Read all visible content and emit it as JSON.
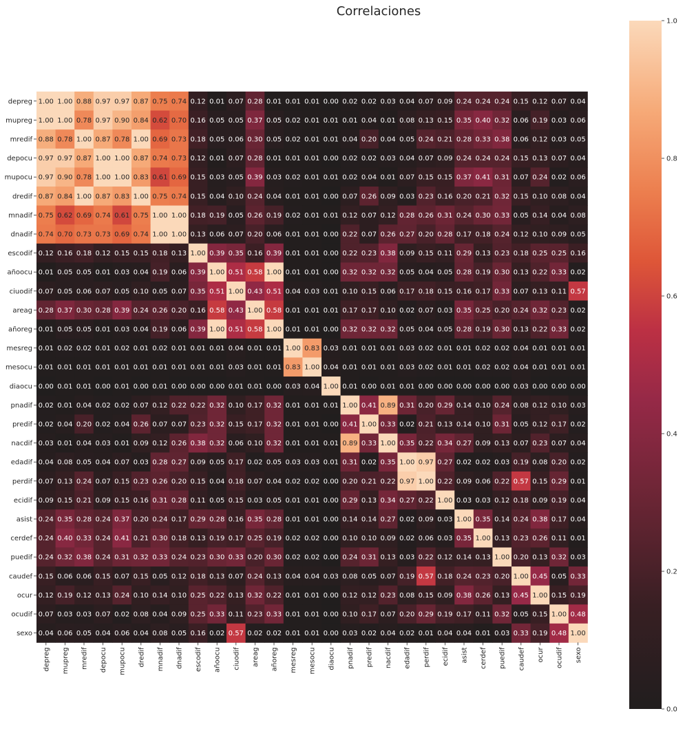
{
  "chart_data": {
    "type": "heatmap",
    "title": "Correlaciones",
    "variables": [
      "depreg",
      "mupreg",
      "mredif",
      "depocu",
      "mupocu",
      "dredif",
      "mnadif",
      "dnadif",
      "escodif",
      "añoocu",
      "ciuodif",
      "areag",
      "añoreg",
      "mesreg",
      "mesocu",
      "diaocu",
      "pnadif",
      "predif",
      "nacdif",
      "edadif",
      "perdif",
      "ecidif",
      "asist",
      "cerdef",
      "puedif",
      "caudef",
      "ocur",
      "ocudif",
      "sexo"
    ],
    "matrix": [
      [
        1.0,
        1.0,
        0.88,
        0.97,
        0.97,
        0.87,
        0.75,
        0.74,
        0.12,
        0.01,
        0.07,
        0.28,
        0.01,
        0.01,
        0.01,
        0.0,
        0.02,
        0.02,
        0.03,
        0.04,
        0.07,
        0.09,
        0.24,
        0.24,
        0.24,
        0.15,
        0.12,
        0.07,
        0.04
      ],
      [
        1.0,
        1.0,
        0.78,
        0.97,
        0.9,
        0.84,
        0.62,
        0.7,
        0.16,
        0.05,
        0.05,
        0.37,
        0.05,
        0.02,
        0.01,
        0.01,
        0.01,
        0.04,
        0.01,
        0.08,
        0.13,
        0.15,
        0.35,
        0.4,
        0.32,
        0.06,
        0.19,
        0.03,
        0.06
      ],
      [
        0.88,
        0.78,
        1.0,
        0.87,
        0.78,
        1.0,
        0.69,
        0.73,
        0.18,
        0.05,
        0.06,
        0.3,
        0.05,
        0.02,
        0.01,
        0.01,
        0.04,
        0.2,
        0.04,
        0.05,
        0.24,
        0.21,
        0.28,
        0.33,
        0.38,
        0.06,
        0.12,
        0.03,
        0.05
      ],
      [
        0.97,
        0.97,
        0.87,
        1.0,
        1.0,
        0.87,
        0.74,
        0.73,
        0.12,
        0.01,
        0.07,
        0.28,
        0.01,
        0.01,
        0.01,
        0.0,
        0.02,
        0.02,
        0.03,
        0.04,
        0.07,
        0.09,
        0.24,
        0.24,
        0.24,
        0.15,
        0.13,
        0.07,
        0.04
      ],
      [
        0.97,
        0.9,
        0.78,
        1.0,
        1.0,
        0.83,
        0.61,
        0.69,
        0.15,
        0.03,
        0.05,
        0.39,
        0.03,
        0.02,
        0.01,
        0.01,
        0.02,
        0.04,
        0.01,
        0.07,
        0.15,
        0.15,
        0.37,
        0.41,
        0.31,
        0.07,
        0.24,
        0.02,
        0.06
      ],
      [
        0.87,
        0.84,
        1.0,
        0.87,
        0.83,
        1.0,
        0.75,
        0.74,
        0.15,
        0.04,
        0.1,
        0.24,
        0.04,
        0.01,
        0.01,
        0.0,
        0.07,
        0.26,
        0.09,
        0.03,
        0.23,
        0.16,
        0.2,
        0.21,
        0.32,
        0.15,
        0.1,
        0.08,
        0.04
      ],
      [
        0.75,
        0.62,
        0.69,
        0.74,
        0.61,
        0.75,
        1.0,
        1.0,
        0.18,
        0.19,
        0.05,
        0.26,
        0.19,
        0.02,
        0.01,
        0.01,
        0.12,
        0.07,
        0.12,
        0.28,
        0.26,
        0.31,
        0.24,
        0.3,
        0.33,
        0.05,
        0.14,
        0.04,
        0.08
      ],
      [
        0.74,
        0.7,
        0.73,
        0.73,
        0.69,
        0.74,
        1.0,
        1.0,
        0.13,
        0.06,
        0.07,
        0.2,
        0.06,
        0.01,
        0.01,
        0.0,
        0.22,
        0.07,
        0.26,
        0.27,
        0.2,
        0.28,
        0.17,
        0.18,
        0.24,
        0.12,
        0.1,
        0.09,
        0.05
      ],
      [
        0.12,
        0.16,
        0.18,
        0.12,
        0.15,
        0.15,
        0.18,
        0.13,
        1.0,
        0.39,
        0.35,
        0.16,
        0.39,
        0.01,
        0.01,
        0.0,
        0.22,
        0.23,
        0.38,
        0.09,
        0.15,
        0.11,
        0.29,
        0.13,
        0.23,
        0.18,
        0.25,
        0.25,
        0.16
      ],
      [
        0.01,
        0.05,
        0.05,
        0.01,
        0.03,
        0.04,
        0.19,
        0.06,
        0.39,
        1.0,
        0.51,
        0.58,
        1.0,
        0.01,
        0.01,
        0.0,
        0.32,
        0.32,
        0.32,
        0.05,
        0.04,
        0.05,
        0.28,
        0.19,
        0.3,
        0.13,
        0.22,
        0.33,
        0.02
      ],
      [
        0.07,
        0.05,
        0.06,
        0.07,
        0.05,
        0.1,
        0.05,
        0.07,
        0.35,
        0.51,
        1.0,
        0.43,
        0.51,
        0.04,
        0.03,
        0.01,
        0.1,
        0.15,
        0.06,
        0.17,
        0.18,
        0.15,
        0.16,
        0.17,
        0.33,
        0.07,
        0.13,
        0.11,
        0.57
      ],
      [
        0.28,
        0.37,
        0.3,
        0.28,
        0.39,
        0.24,
        0.26,
        0.2,
        0.16,
        0.58,
        0.43,
        1.0,
        0.58,
        0.01,
        0.01,
        0.01,
        0.17,
        0.17,
        0.1,
        0.02,
        0.07,
        0.03,
        0.35,
        0.25,
        0.2,
        0.24,
        0.32,
        0.23,
        0.02
      ],
      [
        0.01,
        0.05,
        0.05,
        0.01,
        0.03,
        0.04,
        0.19,
        0.06,
        0.39,
        1.0,
        0.51,
        0.58,
        1.0,
        0.01,
        0.01,
        0.0,
        0.32,
        0.32,
        0.32,
        0.05,
        0.04,
        0.05,
        0.28,
        0.19,
        0.3,
        0.13,
        0.22,
        0.33,
        0.02
      ],
      [
        0.01,
        0.02,
        0.02,
        0.01,
        0.02,
        0.01,
        0.02,
        0.01,
        0.01,
        0.01,
        0.04,
        0.01,
        0.01,
        1.0,
        0.83,
        0.03,
        0.01,
        0.01,
        0.01,
        0.03,
        0.02,
        0.01,
        0.01,
        0.02,
        0.02,
        0.04,
        0.01,
        0.01,
        0.01
      ],
      [
        0.01,
        0.01,
        0.01,
        0.01,
        0.01,
        0.01,
        0.01,
        0.01,
        0.01,
        0.01,
        0.03,
        0.01,
        0.01,
        0.83,
        1.0,
        0.04,
        0.01,
        0.01,
        0.01,
        0.03,
        0.02,
        0.01,
        0.01,
        0.02,
        0.02,
        0.04,
        0.01,
        0.01,
        0.01
      ],
      [
        0.0,
        0.01,
        0.01,
        0.0,
        0.01,
        0.0,
        0.01,
        0.0,
        0.0,
        0.0,
        0.01,
        0.01,
        0.0,
        0.03,
        0.04,
        1.0,
        0.01,
        0.0,
        0.01,
        0.01,
        0.0,
        0.0,
        0.0,
        0.0,
        0.0,
        0.03,
        0.0,
        0.0,
        0.0
      ],
      [
        0.02,
        0.01,
        0.04,
        0.02,
        0.02,
        0.07,
        0.12,
        0.22,
        0.22,
        0.32,
        0.1,
        0.17,
        0.32,
        0.01,
        0.01,
        0.01,
        1.0,
        0.41,
        0.89,
        0.31,
        0.2,
        0.29,
        0.14,
        0.1,
        0.24,
        0.08,
        0.12,
        0.1,
        0.03
      ],
      [
        0.02,
        0.04,
        0.2,
        0.02,
        0.04,
        0.26,
        0.07,
        0.07,
        0.23,
        0.32,
        0.15,
        0.17,
        0.32,
        0.01,
        0.01,
        0.0,
        0.41,
        1.0,
        0.33,
        0.02,
        0.21,
        0.13,
        0.14,
        0.1,
        0.31,
        0.05,
        0.12,
        0.17,
        0.02
      ],
      [
        0.03,
        0.01,
        0.04,
        0.03,
        0.01,
        0.09,
        0.12,
        0.26,
        0.38,
        0.32,
        0.06,
        0.1,
        0.32,
        0.01,
        0.01,
        0.01,
        0.89,
        0.33,
        1.0,
        0.35,
        0.22,
        0.34,
        0.27,
        0.09,
        0.13,
        0.07,
        0.23,
        0.07,
        0.04
      ],
      [
        0.04,
        0.08,
        0.05,
        0.04,
        0.07,
        0.03,
        0.28,
        0.27,
        0.09,
        0.05,
        0.17,
        0.02,
        0.05,
        0.03,
        0.03,
        0.01,
        0.31,
        0.02,
        0.35,
        1.0,
        0.97,
        0.27,
        0.02,
        0.02,
        0.03,
        0.19,
        0.08,
        0.2,
        0.02
      ],
      [
        0.07,
        0.13,
        0.24,
        0.07,
        0.15,
        0.23,
        0.26,
        0.2,
        0.15,
        0.04,
        0.18,
        0.07,
        0.04,
        0.02,
        0.02,
        0.0,
        0.2,
        0.21,
        0.22,
        0.97,
        1.0,
        0.22,
        0.09,
        0.06,
        0.22,
        0.57,
        0.15,
        0.29,
        0.01
      ],
      [
        0.09,
        0.15,
        0.21,
        0.09,
        0.15,
        0.16,
        0.31,
        0.28,
        0.11,
        0.05,
        0.15,
        0.03,
        0.05,
        0.01,
        0.01,
        0.0,
        0.29,
        0.13,
        0.34,
        0.27,
        0.22,
        1.0,
        0.03,
        0.03,
        0.12,
        0.18,
        0.09,
        0.19,
        0.04
      ],
      [
        0.24,
        0.35,
        0.28,
        0.24,
        0.37,
        0.2,
        0.24,
        0.17,
        0.29,
        0.28,
        0.16,
        0.35,
        0.28,
        0.01,
        0.01,
        0.0,
        0.14,
        0.14,
        0.27,
        0.02,
        0.09,
        0.03,
        1.0,
        0.35,
        0.14,
        0.24,
        0.38,
        0.17,
        0.04
      ],
      [
        0.24,
        0.4,
        0.33,
        0.24,
        0.41,
        0.21,
        0.3,
        0.18,
        0.13,
        0.19,
        0.17,
        0.25,
        0.19,
        0.02,
        0.02,
        0.0,
        0.1,
        0.1,
        0.09,
        0.02,
        0.06,
        0.03,
        0.35,
        1.0,
        0.13,
        0.23,
        0.26,
        0.11,
        0.01
      ],
      [
        0.24,
        0.32,
        0.38,
        0.24,
        0.31,
        0.32,
        0.33,
        0.24,
        0.23,
        0.3,
        0.33,
        0.2,
        0.3,
        0.02,
        0.02,
        0.0,
        0.24,
        0.31,
        0.13,
        0.03,
        0.22,
        0.12,
        0.14,
        0.13,
        1.0,
        0.2,
        0.13,
        0.32,
        0.03
      ],
      [
        0.15,
        0.06,
        0.06,
        0.15,
        0.07,
        0.15,
        0.05,
        0.12,
        0.18,
        0.13,
        0.07,
        0.24,
        0.13,
        0.04,
        0.04,
        0.03,
        0.08,
        0.05,
        0.07,
        0.19,
        0.57,
        0.18,
        0.24,
        0.23,
        0.2,
        1.0,
        0.45,
        0.05,
        0.33
      ],
      [
        0.12,
        0.19,
        0.12,
        0.13,
        0.24,
        0.1,
        0.14,
        0.1,
        0.25,
        0.22,
        0.13,
        0.32,
        0.22,
        0.01,
        0.01,
        0.0,
        0.12,
        0.12,
        0.23,
        0.08,
        0.15,
        0.09,
        0.38,
        0.26,
        0.13,
        0.45,
        1.0,
        0.15,
        0.19
      ],
      [
        0.07,
        0.03,
        0.03,
        0.07,
        0.02,
        0.08,
        0.04,
        0.09,
        0.25,
        0.33,
        0.11,
        0.23,
        0.33,
        0.01,
        0.01,
        0.0,
        0.1,
        0.17,
        0.07,
        0.2,
        0.29,
        0.19,
        0.17,
        0.11,
        0.32,
        0.05,
        0.15,
        1.0,
        0.48
      ],
      [
        0.04,
        0.06,
        0.05,
        0.04,
        0.06,
        0.04,
        0.08,
        0.05,
        0.16,
        0.02,
        0.57,
        0.02,
        0.02,
        0.01,
        0.01,
        0.0,
        0.03,
        0.02,
        0.04,
        0.02,
        0.01,
        0.04,
        0.04,
        0.01,
        0.03,
        0.33,
        0.19,
        0.48,
        1.0
      ]
    ],
    "value_format": "0.00",
    "colorbar": {
      "range": [
        0.0,
        1.0
      ],
      "ticks": [
        "0.0",
        "0.2",
        "0.4",
        "0.6",
        "0.8",
        "1.0"
      ],
      "colormap": "icefire-center-0.5 (dark at 0, red at ~0.5, peach at 1)"
    },
    "colors": {
      "low": "#211e1e",
      "mid": "#a0294a",
      "high": "#fbd9ba",
      "text_dark": "#262626",
      "text_light": "#ffffff"
    }
  }
}
